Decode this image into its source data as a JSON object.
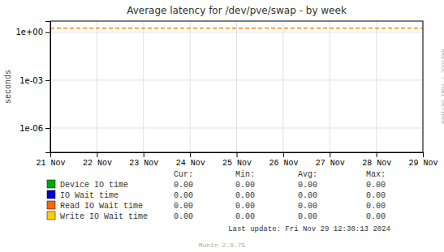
{
  "chart_data": {
    "type": "line",
    "title": "Average latency for /dev/pve/swap - by week",
    "y_label": "seconds",
    "categories": [
      "21 Nov",
      "22 Nov",
      "23 Nov",
      "24 Nov",
      "25 Nov",
      "26 Nov",
      "27 Nov",
      "28 Nov",
      "29 Nov"
    ],
    "log": "y",
    "ylim": [
      3e-08,
      5.0
    ],
    "yticks": [
      {
        "value": 1e-06,
        "label": "1e-06"
      },
      {
        "value": 0.001,
        "label": "1e-03"
      },
      {
        "value": 1,
        "label": "1e+00"
      }
    ],
    "grid": true,
    "legend": "bottom",
    "reference_lines": [
      {
        "value": 1.8,
        "color": "#ff8800",
        "line_style": "dashed"
      }
    ],
    "stat_headers": [
      "Cur:",
      "Min:",
      "Avg:",
      "Max:"
    ],
    "series": [
      {
        "name": "Device IO time",
        "color": "#00aa00",
        "stats": [
          {
            "value": 0,
            "label": "0.00"
          },
          {
            "value": 0,
            "label": "0.00"
          },
          {
            "value": 0,
            "label": "0.00"
          },
          {
            "value": 0,
            "label": "0.00"
          }
        ]
      },
      {
        "name": "IO Wait time",
        "color": "#0000cc",
        "stats": [
          {
            "value": 0,
            "label": "0.00"
          },
          {
            "value": 0,
            "label": "0.00"
          },
          {
            "value": 0,
            "label": "0.00"
          },
          {
            "value": 0,
            "label": "0.00"
          }
        ]
      },
      {
        "name": "Read IO Wait time",
        "color": "#ff6600",
        "stats": [
          {
            "value": 0,
            "label": "0.00"
          },
          {
            "value": 0,
            "label": "0.00"
          },
          {
            "value": 0,
            "label": "0.00"
          },
          {
            "value": 0,
            "label": "0.00"
          }
        ]
      },
      {
        "name": "Write IO Wait time",
        "color": "#ffcc00",
        "stats": [
          {
            "value": 0,
            "label": "0.00"
          },
          {
            "value": 0,
            "label": "0.00"
          },
          {
            "value": 0,
            "label": "0.00"
          },
          {
            "value": 0,
            "label": "0.00"
          }
        ]
      }
    ],
    "footer": "Last update: Fri Nov 29 12:30:13 2024",
    "credit": "Munin 2.0.75",
    "watermark": "RRDTOOL / TOBI OETIKER"
  }
}
